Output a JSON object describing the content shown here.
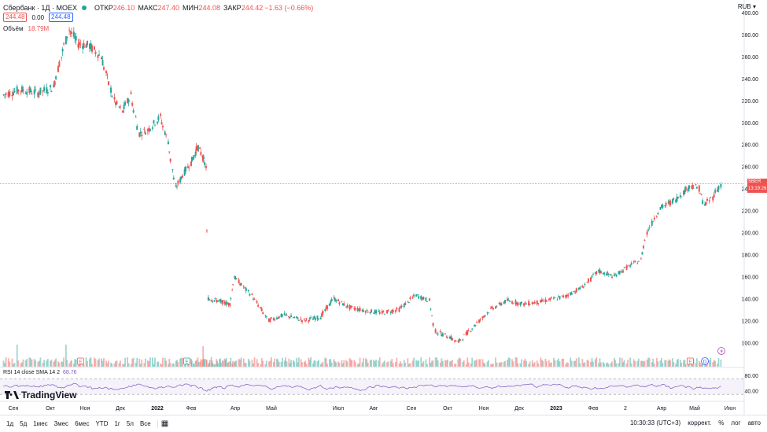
{
  "header": {
    "symbol": "Сбербанк · 1Д · MOEX",
    "open_label": "ОТКР",
    "open": "246.10",
    "high_label": "МАКС",
    "high": "247.40",
    "low_label": "МИН",
    "low": "244.08",
    "close_label": "ЗАКР",
    "close": "244.42",
    "change": "−1.63 (−0.66%)",
    "bid": "244.48",
    "spread": "0.00",
    "ask": "244.48"
  },
  "volume": {
    "label": "Объём",
    "value": "18.79M"
  },
  "currency": "RUB",
  "rsi": {
    "label": "RSI 14 close SMA 14 2",
    "value": "68.76",
    "ticks": [
      "80.00",
      "40.00"
    ]
  },
  "price_tag": {
    "ticker": "SBER",
    "price": "244.43",
    "countdown": "13:19:26"
  },
  "logo": "TradingView",
  "toolbar": {
    "timeframes": [
      "1д",
      "5д",
      "1мес",
      "3мес",
      "6мес",
      "YTD",
      "1г",
      "5л",
      "Все"
    ],
    "time": "10:30:33 (UTC+3)",
    "correct": "коррект.",
    "percent": "%",
    "log": "лог",
    "auto": "авто"
  },
  "markers": [
    {
      "letter": "E",
      "color": "#ef5350",
      "date": "2021-10-28"
    },
    {
      "letter": "E",
      "color": "#26a69a",
      "date": "2022-01-28"
    },
    {
      "letter": "E",
      "color": "#ef5350",
      "date": "2023-04-27"
    },
    {
      "letter": "D",
      "color": "#2962ff",
      "date": "2023-05-10"
    }
  ],
  "colors": {
    "up": "#26a69a",
    "down": "#ef5350",
    "rsi": "#7e57c2"
  },
  "chart_data": {
    "type": "candlestick",
    "title": "Сбербанк · 1Д · MOEX",
    "y_ticks": [
      400,
      380,
      360,
      340,
      320,
      300,
      280,
      260,
      240,
      220,
      200,
      180,
      160,
      140,
      120,
      100
    ],
    "ylim": [
      78,
      400
    ],
    "x_ticks": [
      "Сен",
      "Окт",
      "Ноя",
      "Дек",
      "2022",
      "Фев",
      "Апр",
      "Май",
      "Июл",
      "Авг",
      "Сен",
      "Окт",
      "Ноя",
      "Дек",
      "2023",
      "Фев",
      "2",
      "Апр",
      "Май",
      "Июн"
    ],
    "series": [
      {
        "name": "Сбербанк",
        "points": [
          {
            "date": "2021-08-24",
            "close": 325
          },
          {
            "date": "2021-09-07",
            "close": 330
          },
          {
            "date": "2021-09-21",
            "close": 327
          },
          {
            "date": "2021-10-04",
            "close": 332
          },
          {
            "date": "2021-10-11",
            "close": 360
          },
          {
            "date": "2021-10-18",
            "close": 385
          },
          {
            "date": "2021-10-26",
            "close": 372
          },
          {
            "date": "2021-11-05",
            "close": 370
          },
          {
            "date": "2021-11-15",
            "close": 360
          },
          {
            "date": "2021-11-26",
            "close": 320
          },
          {
            "date": "2021-12-03",
            "close": 310
          },
          {
            "date": "2021-12-10",
            "close": 325
          },
          {
            "date": "2021-12-17",
            "close": 290
          },
          {
            "date": "2021-12-24",
            "close": 293
          },
          {
            "date": "2022-01-04",
            "close": 305
          },
          {
            "date": "2022-01-11",
            "close": 283
          },
          {
            "date": "2022-01-18",
            "close": 240
          },
          {
            "date": "2022-01-26",
            "close": 255
          },
          {
            "date": "2022-02-04",
            "close": 268
          },
          {
            "date": "2022-02-10",
            "close": 278
          },
          {
            "date": "2022-02-16",
            "close": 270
          },
          {
            "date": "2022-02-21",
            "close": 260
          },
          {
            "date": "2022-02-24",
            "close": 140
          },
          {
            "date": "2022-03-25",
            "close": 135
          },
          {
            "date": "2022-03-31",
            "close": 160
          },
          {
            "date": "2022-04-15",
            "close": 143
          },
          {
            "date": "2022-04-29",
            "close": 120
          },
          {
            "date": "2022-05-13",
            "close": 125
          },
          {
            "date": "2022-05-31",
            "close": 120
          },
          {
            "date": "2022-06-15",
            "close": 123
          },
          {
            "date": "2022-06-27",
            "close": 140
          },
          {
            "date": "2022-07-11",
            "close": 132
          },
          {
            "date": "2022-07-25",
            "close": 129
          },
          {
            "date": "2022-08-08",
            "close": 127
          },
          {
            "date": "2022-08-22",
            "close": 130
          },
          {
            "date": "2022-09-05",
            "close": 143
          },
          {
            "date": "2022-09-16",
            "close": 138
          },
          {
            "date": "2022-09-21",
            "close": 110
          },
          {
            "date": "2022-10-03",
            "close": 105
          },
          {
            "date": "2022-10-10",
            "close": 100
          },
          {
            "date": "2022-10-24",
            "close": 115
          },
          {
            "date": "2022-11-07",
            "close": 130
          },
          {
            "date": "2022-11-21",
            "close": 138
          },
          {
            "date": "2022-12-05",
            "close": 135
          },
          {
            "date": "2022-12-19",
            "close": 137
          },
          {
            "date": "2023-01-09",
            "close": 142
          },
          {
            "date": "2023-01-23",
            "close": 150
          },
          {
            "date": "2023-02-06",
            "close": 165
          },
          {
            "date": "2023-02-20",
            "close": 160
          },
          {
            "date": "2023-03-06",
            "close": 170
          },
          {
            "date": "2023-03-15",
            "close": 175
          },
          {
            "date": "2023-03-20",
            "close": 200
          },
          {
            "date": "2023-03-31",
            "close": 222
          },
          {
            "date": "2023-04-14",
            "close": 230
          },
          {
            "date": "2023-04-28",
            "close": 243
          },
          {
            "date": "2023-05-05",
            "close": 240
          },
          {
            "date": "2023-05-10",
            "close": 225
          },
          {
            "date": "2023-05-17",
            "close": 232
          },
          {
            "date": "2023-05-24",
            "close": 244
          }
        ]
      }
    ]
  }
}
